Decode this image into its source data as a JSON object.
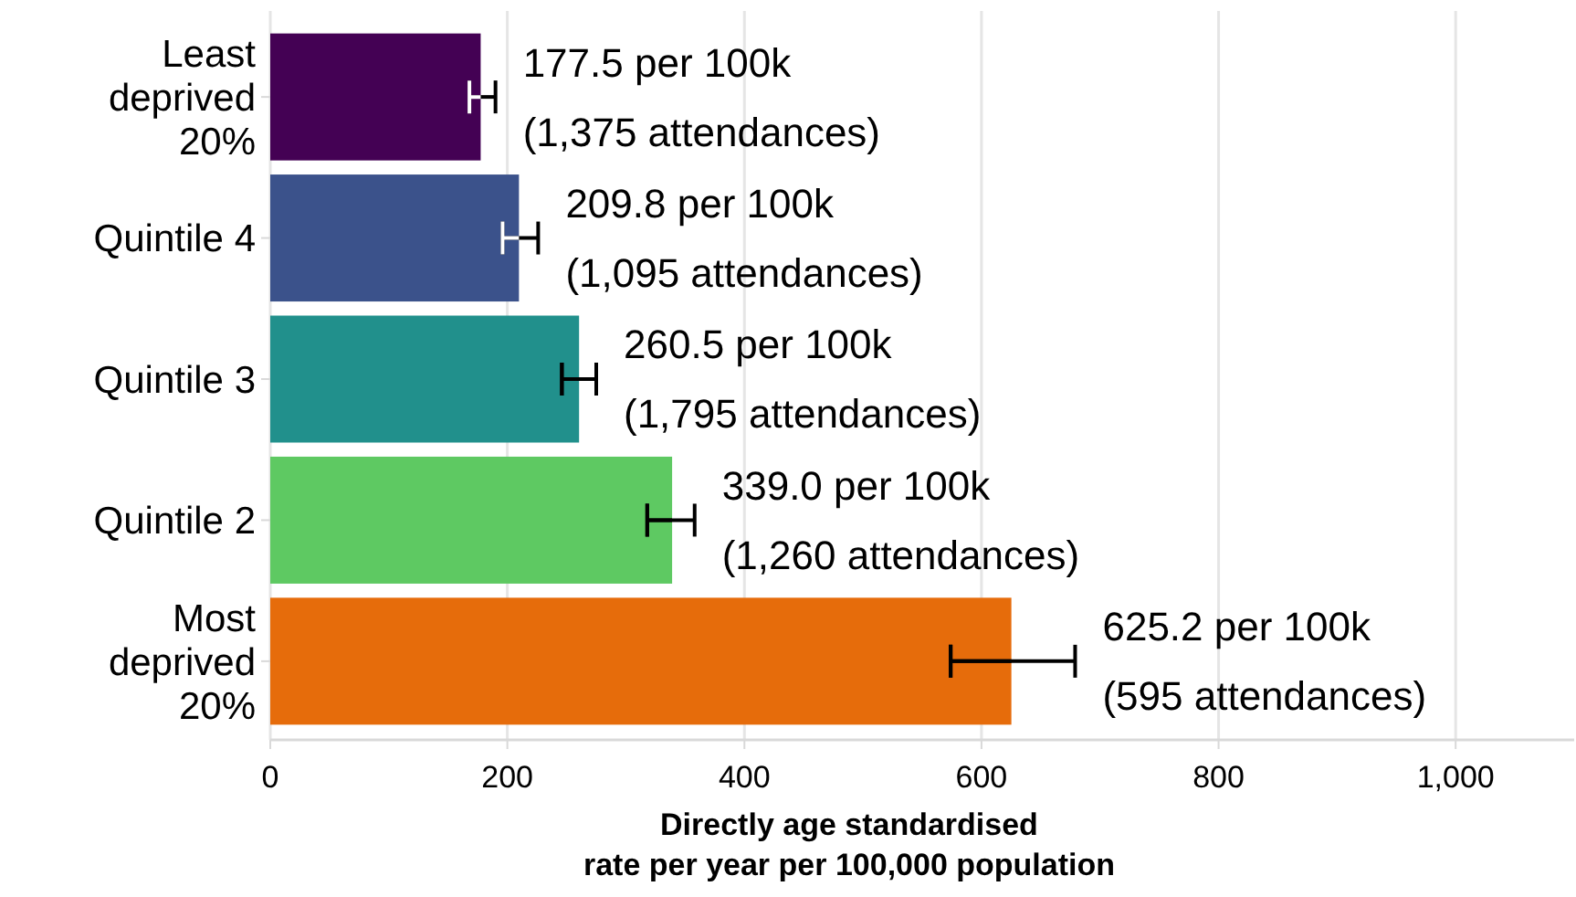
{
  "chart_data": {
    "type": "bar",
    "orientation": "horizontal",
    "xlabel": "Directly age standardised\nrate per year per 100,000 population",
    "categories": [
      "Least deprived 20%",
      "Quintile 4",
      "Quintile 3",
      "Quintile 2",
      "Most deprived 20%"
    ],
    "values": [
      177.5,
      209.8,
      260.5,
      339.0,
      625.2
    ],
    "colors": [
      "#440154",
      "#3b528b",
      "#21908c",
      "#5ec962",
      "#e66c0b"
    ],
    "errors": [
      [
        168,
        190
      ],
      [
        196,
        226
      ],
      [
        246,
        275
      ],
      [
        318,
        358
      ],
      [
        574,
        679
      ]
    ],
    "value_labels": [
      "177.5 per 100k\n(1,375 attendances)",
      "209.8 per 100k\n(1,095 attendances)",
      "260.5 per 100k\n(1,795 attendances)",
      "339.0 per 100k\n(1,260 attendances)",
      "625.2 per 100k\n(595 attendances)"
    ],
    "xlim": [
      0,
      1100
    ],
    "xticks": [
      0,
      200,
      400,
      600,
      800,
      {
        "value": 1000,
        "label": "1,000"
      }
    ],
    "grid": "x"
  }
}
